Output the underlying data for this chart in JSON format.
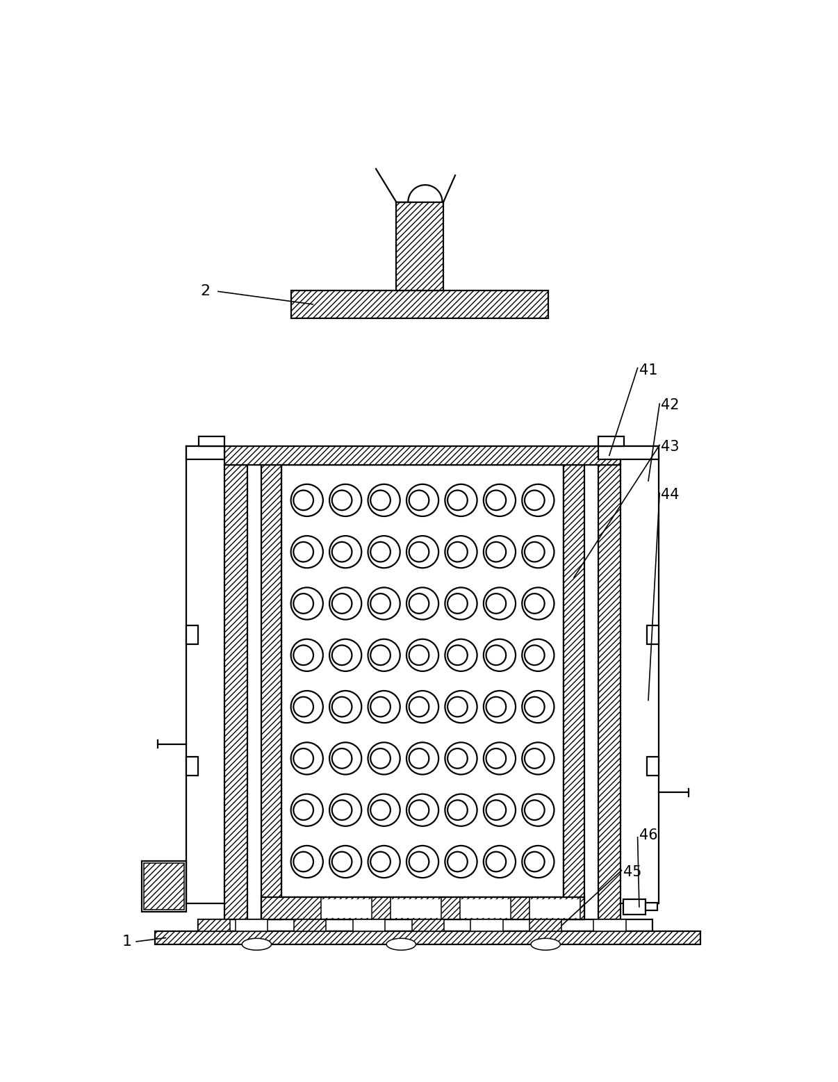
{
  "bg_color": "#ffffff",
  "lc": "#000000",
  "lw1": 2.2,
  "lw2": 1.6,
  "lw3": 1.1,
  "fig_w": 12.06,
  "fig_h": 15.57,
  "n_circle_rows": 8,
  "n_circle_cols": 7,
  "circle_r": 0.3,
  "labels": [
    "1",
    "2",
    "41",
    "42",
    "43",
    "44",
    "45",
    "46"
  ],
  "hatch": "////"
}
